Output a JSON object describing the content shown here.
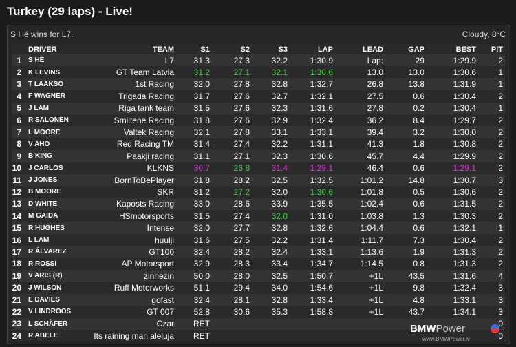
{
  "title": "Turkey (29 laps) - Live!",
  "info": {
    "message": "S Hé wins for L7.",
    "weather": "Cloudy, 8°C"
  },
  "columns": [
    "DRIVER",
    "TEAM",
    "S1",
    "S2",
    "S3",
    "LAP",
    "LEAD",
    "GAP",
    "BEST",
    "PIT"
  ],
  "colors": {
    "green": "#3fd13f",
    "purple": "#e02ee0"
  },
  "rows": [
    {
      "pos": "1",
      "driver": "S HÉ",
      "team": "L7",
      "s1": "31.3",
      "s2": "27.3",
      "s3": "32.2",
      "lap": "1:30.9",
      "lead": "Lap:",
      "gap": "29",
      "best": "1:29.9",
      "pit": "2"
    },
    {
      "pos": "2",
      "driver": "K LEVINS",
      "team": "GT Team Latvia",
      "s1": "31.2",
      "s2": "27.1",
      "s3": "32.1",
      "lap": "1:30.6",
      "lead": "13.0",
      "gap": "13.0",
      "best": "1:30.6",
      "pit": "1",
      "hl": {
        "s1": "green",
        "s2": "green",
        "s3": "green",
        "lap": "green"
      }
    },
    {
      "pos": "3",
      "driver": "T LAAKSO",
      "team": "1st Racing",
      "s1": "32.0",
      "s2": "27.8",
      "s3": "32.8",
      "lap": "1:32.7",
      "lead": "26.8",
      "gap": "13.8",
      "best": "1:31.9",
      "pit": "1"
    },
    {
      "pos": "4",
      "driver": "F WAGNER",
      "team": "Trigada Racing",
      "s1": "31.7",
      "s2": "27.6",
      "s3": "32.7",
      "lap": "1:32.1",
      "lead": "27.5",
      "gap": "0.6",
      "best": "1:30.4",
      "pit": "2"
    },
    {
      "pos": "5",
      "driver": "J LAM",
      "team": "Riga tank team",
      "s1": "31.5",
      "s2": "27.6",
      "s3": "32.3",
      "lap": "1:31.6",
      "lead": "27.8",
      "gap": "0.2",
      "best": "1:30.4",
      "pit": "1"
    },
    {
      "pos": "6",
      "driver": "R SALONEN",
      "team": "Smiltene Racing",
      "s1": "31.8",
      "s2": "27.6",
      "s3": "32.9",
      "lap": "1:32.4",
      "lead": "36.2",
      "gap": "8.4",
      "best": "1:29.7",
      "pit": "2"
    },
    {
      "pos": "7",
      "driver": "L MOORE",
      "team": "Valtek Racing",
      "s1": "32.1",
      "s2": "27.8",
      "s3": "33.1",
      "lap": "1:33.1",
      "lead": "39.4",
      "gap": "3.2",
      "best": "1:30.0",
      "pit": "2"
    },
    {
      "pos": "8",
      "driver": "V AHO",
      "team": "Red Racing TM",
      "s1": "31.4",
      "s2": "27.4",
      "s3": "32.2",
      "lap": "1:31.1",
      "lead": "41.3",
      "gap": "1.8",
      "best": "1:30.8",
      "pit": "2"
    },
    {
      "pos": "9",
      "driver": "B KING",
      "team": "Paakji racing",
      "s1": "31.1",
      "s2": "27.1",
      "s3": "32.3",
      "lap": "1:30.6",
      "lead": "45.7",
      "gap": "4.4",
      "best": "1:29.9",
      "pit": "2"
    },
    {
      "pos": "10",
      "driver": "J CARLOS",
      "team": "KLKNS",
      "s1": "30.7",
      "s2": "26.8",
      "s3": "31.4",
      "lap": "1:29.1",
      "lead": "46.4",
      "gap": "0.6",
      "best": "1:29.1",
      "pit": "2",
      "hl": {
        "s1": "purple",
        "s2": "green",
        "s3": "purple",
        "lap": "purple",
        "best": "purple"
      }
    },
    {
      "pos": "11",
      "driver": "J JONES",
      "team": "BornToBePlayer",
      "s1": "31.8",
      "s2": "28.2",
      "s3": "32.5",
      "lap": "1:32.5",
      "lead": "1:01.2",
      "gap": "14.8",
      "best": "1:30.7",
      "pit": "3"
    },
    {
      "pos": "12",
      "driver": "B MOORE",
      "team": "SKR",
      "s1": "31.2",
      "s2": "27.2",
      "s3": "32.0",
      "lap": "1:30.6",
      "lead": "1:01.8",
      "gap": "0.5",
      "best": "1:30.6",
      "pit": "2",
      "hl": {
        "s2": "green",
        "lap": "green"
      }
    },
    {
      "pos": "13",
      "driver": "D WHITE",
      "team": "Kaposts Racing",
      "s1": "33.0",
      "s2": "28.6",
      "s3": "33.9",
      "lap": "1:35.5",
      "lead": "1:02.4",
      "gap": "0.6",
      "best": "1:31.5",
      "pit": "2"
    },
    {
      "pos": "14",
      "driver": "M GAIDA",
      "team": "HSmotorsports",
      "s1": "31.5",
      "s2": "27.4",
      "s3": "32.0",
      "lap": "1:31.0",
      "lead": "1:03.8",
      "gap": "1.3",
      "best": "1:30.3",
      "pit": "2",
      "hl": {
        "s3": "green"
      }
    },
    {
      "pos": "15",
      "driver": "R HUGHES",
      "team": "Intense",
      "s1": "32.0",
      "s2": "27.7",
      "s3": "32.8",
      "lap": "1:32.6",
      "lead": "1:04.4",
      "gap": "0.6",
      "best": "1:32.1",
      "pit": "1"
    },
    {
      "pos": "16",
      "driver": "L LAM",
      "team": "huulji",
      "s1": "31.6",
      "s2": "27.5",
      "s3": "32.2",
      "lap": "1:31.4",
      "lead": "1:11.7",
      "gap": "7.3",
      "best": "1:30.4",
      "pit": "2"
    },
    {
      "pos": "17",
      "driver": "R ÁLVAREZ",
      "team": "GT100",
      "s1": "32.4",
      "s2": "28.2",
      "s3": "32.4",
      "lap": "1:33.1",
      "lead": "1:13.6",
      "gap": "1.9",
      "best": "1:31.3",
      "pit": "2"
    },
    {
      "pos": "18",
      "driver": "R ROSSI",
      "team": "AP Motorsport",
      "s1": "32.9",
      "s2": "28.3",
      "s3": "33.4",
      "lap": "1:34.7",
      "lead": "1:14.5",
      "gap": "0.8",
      "best": "1:31.3",
      "pit": "2"
    },
    {
      "pos": "19",
      "driver": "V ARIS (R)",
      "team": "zinnezin",
      "s1": "50.0",
      "s2": "28.0",
      "s3": "32.5",
      "lap": "1:50.7",
      "lead": "+1L",
      "gap": "43.5",
      "best": "1:31.6",
      "pit": "4"
    },
    {
      "pos": "20",
      "driver": "J WILSON",
      "team": "Ruff Motorworks",
      "s1": "51.1",
      "s2": "29.4",
      "s3": "34.0",
      "lap": "1:54.6",
      "lead": "+1L",
      "gap": "9.8",
      "best": "1:32.4",
      "pit": "3"
    },
    {
      "pos": "21",
      "driver": "E DAVIES",
      "team": "gofast",
      "s1": "32.4",
      "s2": "28.1",
      "s3": "32.8",
      "lap": "1:33.4",
      "lead": "+1L",
      "gap": "4.8",
      "best": "1:33.1",
      "pit": "3"
    },
    {
      "pos": "22",
      "driver": "V LINDROOS",
      "team": "GT 007",
      "s1": "52.8",
      "s2": "30.6",
      "s3": "35.3",
      "lap": "1:58.8",
      "lead": "+1L",
      "gap": "43.7",
      "best": "1:34.1",
      "pit": "3"
    },
    {
      "pos": "23",
      "driver": "L SCHÄFER",
      "team": "Czar",
      "s1": "RET",
      "s2": "",
      "s3": "",
      "lap": "",
      "lead": "",
      "gap": "",
      "best": "",
      "pit": "0"
    },
    {
      "pos": "24",
      "driver": "R ABELE",
      "team": "Its raining man aleluja",
      "s1": "RET",
      "s2": "",
      "s3": "",
      "lap": "",
      "lead": "",
      "gap": "",
      "best": "",
      "pit": "0"
    }
  ],
  "branding": {
    "logo_main": "BMW",
    "logo_accent": "Power",
    "url": "www.BMWPower.lv"
  }
}
